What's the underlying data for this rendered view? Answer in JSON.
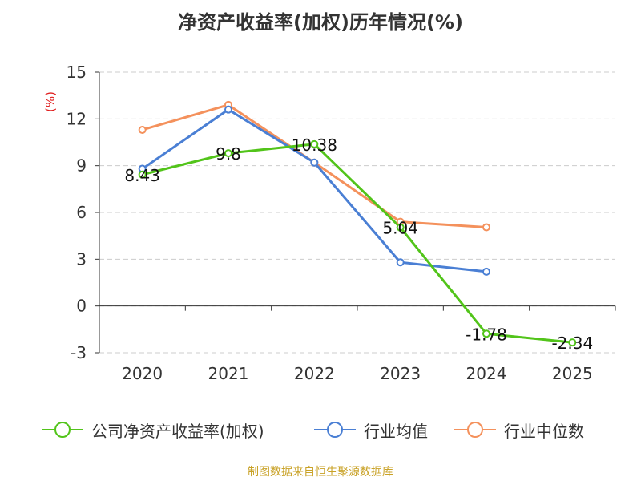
{
  "chart_data": {
    "type": "line",
    "title": "净资产收益率(加权)历年情况(%)",
    "ylabel": "(%)",
    "xlabel": "",
    "categories": [
      "2020",
      "2021",
      "2022",
      "2023",
      "2024",
      "2025"
    ],
    "ylim": [
      -3,
      15
    ],
    "yticks": [
      -3,
      0,
      3,
      6,
      9,
      12,
      15
    ],
    "grid": "horizontal-dashed",
    "legend_position": "bottom",
    "series": [
      {
        "name": "公司净资产收益率(加权)",
        "color": "#52c41a",
        "values": [
          8.43,
          9.8,
          10.38,
          5.04,
          -1.78,
          -2.34
        ],
        "labels": [
          "8.43",
          "9.8",
          "10.38",
          "5.04",
          "-1.78",
          "-2.34"
        ]
      },
      {
        "name": "行业均值",
        "color": "#4a7fd4",
        "values": [
          8.8,
          12.6,
          9.2,
          2.8,
          2.2,
          null
        ]
      },
      {
        "name": "行业中位数",
        "color": "#f4915c",
        "values": [
          11.3,
          12.9,
          9.2,
          5.4,
          5.05,
          null
        ]
      }
    ]
  },
  "footer": {
    "source": "制图数据来自恒生聚源数据库"
  }
}
